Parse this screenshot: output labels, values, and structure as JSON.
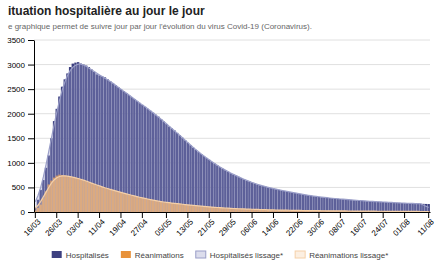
{
  "chart_data": {
    "type": "bar",
    "title": "ituation hospitalière au jour le jour",
    "subtitle": "e graphique permet de suivre jour par jour l'évolution du virus Covid-19 (Coronavirus).",
    "categories": [
      "16/03",
      null,
      null,
      null,
      null,
      null,
      null,
      null,
      "26/03",
      null,
      null,
      null,
      null,
      null,
      null,
      null,
      "03/04",
      null,
      null,
      null,
      null,
      null,
      null,
      null,
      "11/04",
      null,
      null,
      null,
      null,
      null,
      null,
      null,
      "19/04",
      null,
      null,
      null,
      null,
      null,
      null,
      null,
      "27/04",
      null,
      null,
      null,
      null,
      null,
      null,
      null,
      null,
      "05/05",
      null,
      null,
      null,
      null,
      null,
      null,
      null,
      "13/05",
      null,
      null,
      null,
      null,
      null,
      null,
      null,
      "21/05",
      null,
      null,
      null,
      null,
      null,
      null,
      null,
      "29/05",
      null,
      null,
      null,
      null,
      null,
      null,
      null,
      "06/06",
      null,
      null,
      null,
      null,
      null,
      null,
      null,
      "14/06",
      null,
      null,
      null,
      null,
      null,
      null,
      null,
      null,
      "22/06",
      null,
      null,
      null,
      null,
      null,
      null,
      null,
      "30/06",
      null,
      null,
      null,
      null,
      null,
      null,
      null,
      "08/07",
      null,
      null,
      null,
      null,
      null,
      null,
      null,
      "16/07",
      null,
      null,
      null,
      null,
      null,
      null,
      null,
      "24/07",
      null,
      null,
      null,
      null,
      null,
      null,
      null,
      "01/08",
      null,
      null,
      null,
      null,
      null,
      null,
      null,
      null,
      "11/08"
    ],
    "series": [
      {
        "name": "Hospitalisés",
        "type": "bar",
        "color": "#3d4080",
        "values": [
          100,
          250,
          450,
          650,
          900,
          1150,
          1500,
          1850,
          2100,
          2350,
          2550,
          2700,
          2820,
          2950,
          3020,
          3040,
          3050,
          3020,
          3000,
          2980,
          2950,
          2900,
          2850,
          2800,
          2780,
          2760,
          2740,
          2700,
          2660,
          2620,
          2580,
          2540,
          2500,
          2460,
          2420,
          2380,
          2340,
          2300,
          2260,
          2220,
          2180,
          2140,
          2100,
          2060,
          2020,
          1980,
          1940,
          1890,
          1840,
          1790,
          1740,
          1700,
          1660,
          1610,
          1560,
          1510,
          1460,
          1410,
          1360,
          1310,
          1265,
          1220,
          1180,
          1140,
          1100,
          1060,
          1020,
          985,
          950,
          915,
          880,
          850,
          820,
          790,
          765,
          740,
          715,
          690,
          665,
          640,
          620,
          600,
          580,
          560,
          545,
          530,
          515,
          500,
          488,
          476,
          464,
          452,
          440,
          428,
          418,
          408,
          398,
          388,
          378,
          368,
          358,
          348,
          340,
          332,
          324,
          316,
          308,
          302,
          296,
          290,
          285,
          280,
          275,
          270,
          265,
          260,
          255,
          250,
          246,
          242,
          238,
          234,
          230,
          226,
          222,
          218,
          215,
          212,
          209,
          206,
          203,
          200,
          197,
          194,
          191,
          188,
          185,
          183,
          180,
          178,
          176,
          174,
          172,
          170,
          168,
          166,
          164,
          162
        ]
      },
      {
        "name": "Réanimations",
        "type": "bar",
        "color": "#e8923a",
        "values": [
          30,
          80,
          150,
          280,
          420,
          560,
          640,
          700,
          740,
          760,
          750,
          740,
          730,
          720,
          710,
          700,
          690,
          670,
          650,
          630,
          610,
          590,
          570,
          545,
          525,
          510,
          495,
          478,
          460,
          445,
          430,
          415,
          400,
          385,
          370,
          355,
          340,
          325,
          312,
          300,
          288,
          276,
          264,
          252,
          240,
          228,
          218,
          210,
          202,
          195,
          188,
          182,
          176,
          170,
          164,
          158,
          152,
          146,
          140,
          134,
          128,
          123,
          118,
          113,
          108,
          104,
          100,
          96,
          92,
          88,
          84,
          80,
          77,
          74,
          71,
          68,
          66,
          64,
          62,
          60,
          58,
          56,
          54,
          52,
          50,
          48,
          46,
          44,
          43,
          42,
          41,
          40,
          39,
          38,
          37,
          36,
          35,
          34,
          33,
          32,
          31,
          30,
          29,
          28,
          27,
          27,
          26,
          26,
          25,
          25,
          24,
          24,
          23,
          23,
          22,
          22,
          21,
          21,
          20,
          20,
          19,
          19,
          18,
          18,
          17,
          17,
          16,
          16,
          16,
          15,
          15,
          15,
          14,
          14,
          14,
          13,
          13,
          13,
          12,
          12,
          12,
          11,
          11,
          11,
          10,
          10,
          10,
          10
        ]
      },
      {
        "name": "Hospitalisés lissage*",
        "type": "area",
        "color": "#9a9ec8",
        "values": [
          207.14,
          335.71,
          500,
          714.29,
          964.29,
          1228.57,
          1500,
          1771.43,
          2028.57,
          2267.14,
          2474.29,
          2641.43,
          2775.71,
          2875.71,
          2942.86,
          2985.71,
          3008.57,
          3008.57,
          2991.43,
          2964.29,
          2928.57,
          2894.29,
          2860,
          2825.71,
          2790,
          2755.71,
          2722.86,
          2691.43,
          2657.14,
          2620,
          2580,
          2540,
          2500,
          2460,
          2420,
          2380,
          2340,
          2300,
          2260,
          2220,
          2180,
          2140,
          2100,
          2060,
          2018.57,
          1975.71,
          1931.43,
          1885.71,
          1840,
          1794.29,
          1747.14,
          1700,
          1652.86,
          1605.71,
          1558.57,
          1510,
          1460,
          1410.71,
          1362.14,
          1315,
          1269.29,
          1225,
          1182.14,
          1140.71,
          1100.71,
          1062.14,
          1024.29,
          987.14,
          951.43,
          917.14,
          884.29,
          852.86,
          822.86,
          794.29,
          767.14,
          740.71,
          715,
          690.71,
          667.14,
          644.29,
          622.14,
          601.43,
          582.14,
          564.29,
          547.14,
          531.14,
          516.29,
          502.57,
          489.29,
          476.43,
          464,
          452.29,
          440.86,
          429.71,
          418.86,
          408.29,
          398,
          388,
          378,
          368.29,
          358.86,
          349.71,
          340.86,
          332.29,
          324.29,
          316.86,
          309.71,
          303,
          296.71,
          290.86,
          285.43,
          280.14,
          275,
          270,
          265,
          260.14,
          255.43,
          250.86,
          246.43,
          242.14,
          238,
          234,
          230,
          226.14,
          222.43,
          218.86,
          215.43,
          212.14,
          209,
          206,
          203,
          200,
          197,
          194,
          191.14,
          188.29,
          185.57,
          183,
          180.57,
          178.29,
          176.14,
          174,
          172,
          170,
          168,
          143.14,
          118.57,
          94.29
        ]
      },
      {
        "name": "Réanimations lissage*",
        "type": "area",
        "color": "#f5d0a8",
        "values": [
          77.14,
          137.14,
          217.14,
          308.57,
          404.29,
          498.57,
          585.71,
          652.86,
          698.57,
          722.86,
          734.29,
          735.71,
          730,
          720,
          708.57,
          695.71,
          681.43,
          665.71,
          648.57,
          630,
          609.29,
          588.57,
          568.57,
          549.29,
          530.43,
          511.86,
          494,
          477.57,
          461.86,
          446.14,
          430.43,
          415,
          400,
          385,
          370,
          355.29,
          341,
          327.14,
          313.71,
          300.71,
          288.14,
          276,
          264,
          252.29,
          241.14,
          230.57,
          220.71,
          211.57,
          203.29,
          195.86,
          189,
          182.43,
          176.14,
          170,
          164,
          158,
          152,
          146,
          140.14,
          134.43,
          128.86,
          123.43,
          118.29,
          113.43,
          108.86,
          104.43,
          100.14,
          96,
          92,
          88.14,
          84.43,
          80.86,
          77.43,
          74.29,
          71.43,
          68.86,
          66.43,
          64.14,
          62,
          60,
          58,
          56,
          54,
          52,
          50,
          48.14,
          46.43,
          44.86,
          43.43,
          42.14,
          41,
          40,
          39,
          38,
          37,
          36,
          35,
          34,
          33,
          32,
          31,
          30,
          29.14,
          28.29,
          27.57,
          26.86,
          26.29,
          25.71,
          25.29,
          24.71,
          24.29,
          23.71,
          23.29,
          22.71,
          22.29,
          21.71,
          21.29,
          20.71,
          20.29,
          19.71,
          19.29,
          18.71,
          18.29,
          17.71,
          17.29,
          16.86,
          16.43,
          16,
          15.71,
          15.29,
          15,
          14.71,
          14.29,
          14,
          13.71,
          13.29,
          13,
          12.71,
          12.29,
          12,
          11.71,
          11.29,
          11,
          10.71,
          10.43,
          8.86,
          7.29,
          5.71
        ]
      }
    ],
    "stacked": false,
    "ylim": [
      0,
      3500
    ],
    "yticks": [
      0,
      500,
      1000,
      1500,
      2000,
      2500,
      3000,
      3500
    ],
    "grid": true,
    "legend": "bottom"
  }
}
